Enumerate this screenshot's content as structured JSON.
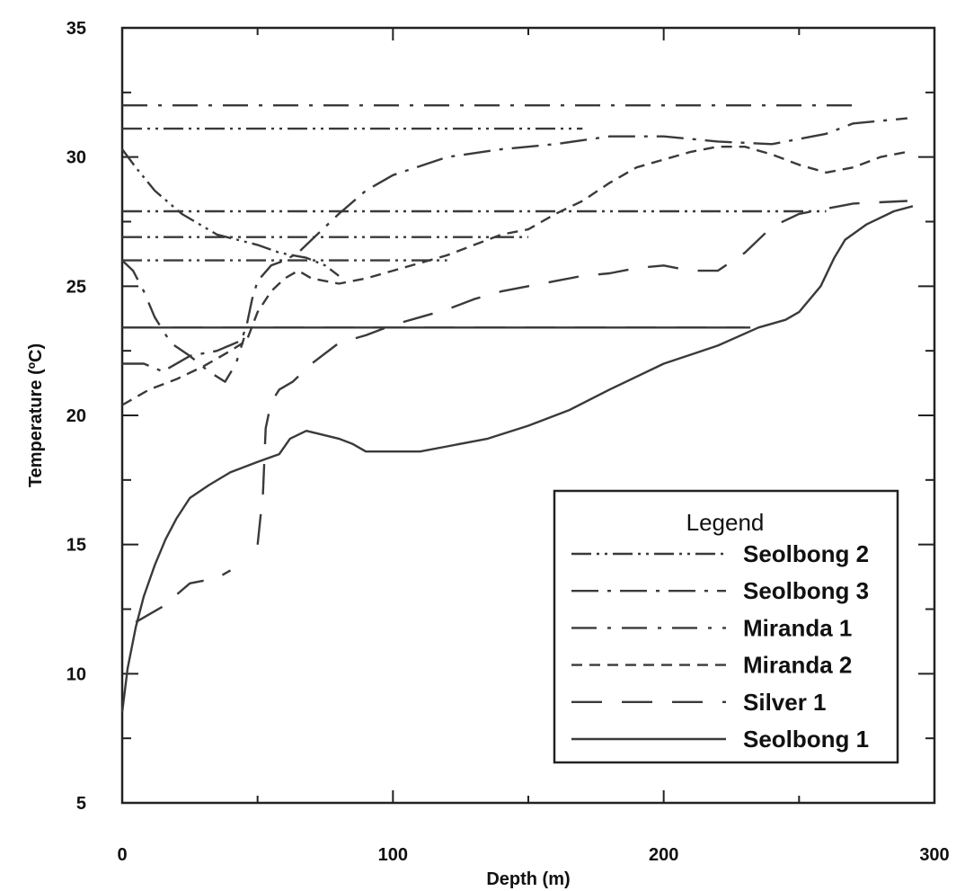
{
  "chart_data": {
    "type": "line",
    "xlabel": "Depth (m)",
    "ylabel": "Temperature (ºC)",
    "xlim": [
      0,
      300
    ],
    "ylim": [
      5,
      35
    ],
    "xticks": [
      0,
      100,
      200,
      300
    ],
    "yticks": [
      5,
      10,
      15,
      20,
      25,
      30,
      35
    ],
    "xtick_labels": [
      "0",
      "100",
      "200",
      "300"
    ],
    "ytick_labels": [
      "5",
      "10",
      "15",
      "20",
      "25",
      "30",
      "35"
    ],
    "grid": false,
    "legend": {
      "title": "Legend",
      "position": "lower-right",
      "entries": [
        "Seolbong 2",
        "Seolbong 3",
        "Miranda 1",
        "Miranda 2",
        "Silver 1",
        "Seolbong 1"
      ]
    },
    "series": [
      {
        "name": "Seolbong 2",
        "dash": "dash-dot-dot",
        "segments": [
          [
            [
              0,
              31.1
            ],
            [
              170,
              31.1
            ]
          ],
          [
            [
              0,
              27.9
            ],
            [
              260,
              27.9
            ]
          ],
          [
            [
              0,
              26.9
            ],
            [
              150,
              26.9
            ]
          ],
          [
            [
              0,
              26.0
            ],
            [
              120,
              26.0
            ]
          ],
          [
            [
              0,
              30.3
            ],
            [
              5,
              29.6
            ],
            [
              12,
              28.7
            ],
            [
              22,
              27.8
            ],
            [
              35,
              27.0
            ],
            [
              50,
              26.6
            ],
            [
              58,
              26.3
            ],
            [
              63,
              26.2
            ],
            [
              68,
              26.1
            ],
            [
              75,
              25.8
            ],
            [
              80,
              25.4
            ]
          ]
        ]
      },
      {
        "name": "Seolbong 3",
        "dash": "long-dash-dot",
        "segments": [
          [
            [
              0,
              22.0
            ],
            [
              8,
              22.0
            ],
            [
              15,
              21.7
            ],
            [
              25,
              22.3
            ],
            [
              35,
              22.5
            ],
            [
              44,
              22.9
            ],
            [
              46,
              23.5
            ],
            [
              48,
              24.5
            ],
            [
              50,
              25.2
            ],
            [
              55,
              25.8
            ],
            [
              60,
              26.0
            ],
            [
              65,
              26.3
            ],
            [
              70,
              26.8
            ],
            [
              80,
              27.8
            ],
            [
              90,
              28.7
            ],
            [
              100,
              29.3
            ],
            [
              120,
              30.0
            ],
            [
              140,
              30.3
            ],
            [
              160,
              30.5
            ],
            [
              180,
              30.8
            ],
            [
              200,
              30.8
            ],
            [
              220,
              30.6
            ],
            [
              240,
              30.5
            ],
            [
              260,
              30.9
            ],
            [
              270,
              31.3
            ],
            [
              290,
              31.5
            ]
          ]
        ]
      },
      {
        "name": "Miranda 1",
        "dash": "dash-dot",
        "segments": [
          [
            [
              0,
              32.0
            ],
            [
              270,
              32.0
            ]
          ],
          [
            [
              0,
              26.0
            ],
            [
              4,
              25.6
            ],
            [
              8,
              24.8
            ],
            [
              12,
              23.8
            ],
            [
              18,
              22.8
            ],
            [
              25,
              22.3
            ],
            [
              32,
              21.7
            ],
            [
              38,
              21.3
            ],
            [
              42,
              22.0
            ],
            [
              45,
              23.0
            ]
          ]
        ]
      },
      {
        "name": "Miranda 2",
        "dash": "short-dash",
        "segments": [
          [
            [
              0,
              20.4
            ],
            [
              10,
              21.0
            ],
            [
              20,
              21.4
            ],
            [
              30,
              21.9
            ],
            [
              40,
              22.5
            ],
            [
              46,
              22.9
            ],
            [
              50,
              24.0
            ],
            [
              55,
              24.8
            ],
            [
              60,
              25.3
            ],
            [
              65,
              25.6
            ],
            [
              70,
              25.3
            ],
            [
              80,
              25.1
            ],
            [
              90,
              25.3
            ],
            [
              100,
              25.6
            ],
            [
              110,
              25.9
            ],
            [
              120,
              26.2
            ],
            [
              130,
              26.6
            ],
            [
              140,
              27.0
            ],
            [
              150,
              27.2
            ],
            [
              160,
              27.8
            ],
            [
              170,
              28.3
            ],
            [
              180,
              29.0
            ],
            [
              190,
              29.6
            ],
            [
              200,
              29.9
            ],
            [
              210,
              30.2
            ],
            [
              220,
              30.4
            ],
            [
              230,
              30.4
            ],
            [
              240,
              30.1
            ],
            [
              250,
              29.7
            ],
            [
              260,
              29.4
            ],
            [
              270,
              29.6
            ],
            [
              280,
              30.0
            ],
            [
              290,
              30.2
            ]
          ]
        ]
      },
      {
        "name": "Silver 1",
        "dash": "long-dash",
        "segments": [
          [
            [
              0,
              23.4
            ],
            [
              230,
              23.4
            ]
          ],
          [
            [
              5,
              12.0
            ],
            [
              15,
              12.6
            ],
            [
              25,
              13.5
            ],
            [
              35,
              13.7
            ],
            [
              40,
              14.0
            ]
          ],
          [
            [
              50,
              15.0
            ],
            [
              52,
              17.0
            ],
            [
              53,
              19.5
            ],
            [
              55,
              20.5
            ],
            [
              58,
              21.0
            ],
            [
              63,
              21.3
            ],
            [
              70,
              22.0
            ],
            [
              80,
              22.8
            ],
            [
              90,
              23.1
            ],
            [
              100,
              23.5
            ],
            [
              110,
              23.8
            ],
            [
              120,
              24.1
            ],
            [
              130,
              24.5
            ],
            [
              140,
              24.8
            ],
            [
              150,
              25.0
            ],
            [
              160,
              25.2
            ],
            [
              170,
              25.4
            ],
            [
              180,
              25.5
            ],
            [
              190,
              25.7
            ],
            [
              200,
              25.8
            ],
            [
              210,
              25.6
            ],
            [
              220,
              25.6
            ],
            [
              230,
              26.3
            ],
            [
              240,
              27.3
            ],
            [
              250,
              27.8
            ],
            [
              260,
              28.0
            ],
            [
              270,
              28.2
            ],
            [
              290,
              28.3
            ]
          ]
        ]
      },
      {
        "name": "Seolbong 1",
        "dash": "solid",
        "segments": [
          [
            [
              0,
              23.4
            ],
            [
              232,
              23.4
            ]
          ],
          [
            [
              0,
              8.5
            ],
            [
              2,
              10.2
            ],
            [
              5,
              11.8
            ],
            [
              8,
              13.0
            ],
            [
              12,
              14.2
            ],
            [
              16,
              15.2
            ],
            [
              20,
              16.0
            ],
            [
              25,
              16.8
            ],
            [
              32,
              17.3
            ],
            [
              40,
              17.8
            ],
            [
              50,
              18.2
            ],
            [
              58,
              18.5
            ],
            [
              62,
              19.1
            ],
            [
              68,
              19.4
            ],
            [
              72,
              19.3
            ],
            [
              80,
              19.1
            ],
            [
              85,
              18.9
            ],
            [
              90,
              18.6
            ],
            [
              100,
              18.6
            ],
            [
              110,
              18.6
            ],
            [
              120,
              18.8
            ],
            [
              135,
              19.1
            ],
            [
              150,
              19.6
            ],
            [
              165,
              20.2
            ],
            [
              180,
              21.0
            ],
            [
              200,
              22.0
            ],
            [
              220,
              22.7
            ],
            [
              235,
              23.4
            ],
            [
              245,
              23.7
            ],
            [
              250,
              24.0
            ],
            [
              258,
              25.0
            ],
            [
              263,
              26.1
            ],
            [
              267,
              26.8
            ],
            [
              275,
              27.4
            ],
            [
              285,
              27.9
            ],
            [
              292,
              28.1
            ]
          ]
        ]
      }
    ]
  }
}
